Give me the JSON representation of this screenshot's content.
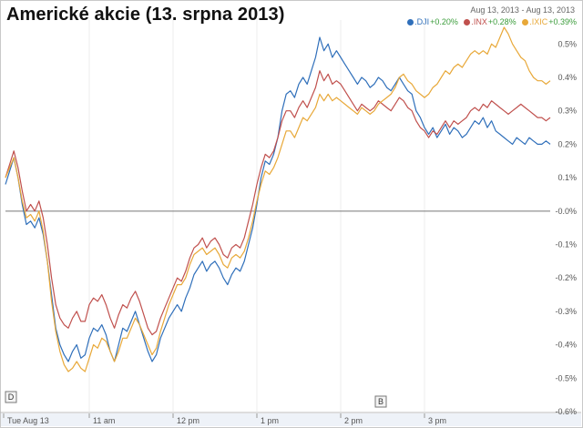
{
  "title": "Americké akcie (13. srpna 2013)",
  "date_range": "Aug 13, 2013  -  Aug 13, 2013",
  "legend": [
    {
      "ticker": ".DJI",
      "change": "+0.20%",
      "color": "#2f6fba"
    },
    {
      "ticker": ".INX",
      "change": "+0.28%",
      "color": "#c0504d"
    },
    {
      "ticker": ".IXIC",
      "change": "+0.39%",
      "color": "#e8a838"
    }
  ],
  "markers": [
    {
      "letter": "D"
    },
    {
      "letter": "B"
    }
  ],
  "chart_data": {
    "type": "line",
    "x": [
      0,
      3,
      6,
      9,
      12,
      15,
      18,
      21,
      24,
      27,
      30,
      33,
      36,
      39,
      42,
      45,
      48,
      51,
      54,
      57,
      60,
      63,
      66,
      69,
      72,
      75,
      78,
      81,
      84,
      87,
      90,
      93,
      96,
      99,
      102,
      105,
      108,
      111,
      114,
      117,
      120,
      123,
      126,
      129,
      132,
      135,
      138,
      141,
      144,
      147,
      150,
      153,
      156,
      159,
      162,
      165,
      168,
      171,
      174,
      177,
      180,
      183,
      186,
      189,
      192,
      195,
      198,
      201,
      204,
      207,
      210,
      213,
      216,
      219,
      222,
      225,
      228,
      231,
      234,
      237,
      240,
      243,
      246,
      249,
      252,
      255,
      258,
      261,
      264,
      267,
      270,
      273,
      276,
      279,
      282,
      285,
      288,
      291,
      294,
      297,
      300,
      303,
      306,
      309,
      312,
      315,
      318,
      321,
      324,
      327,
      330,
      333,
      336,
      339,
      342,
      345,
      348,
      351,
      354,
      357,
      360,
      363,
      366,
      369,
      372,
      375,
      378,
      381,
      384,
      387,
      390
    ],
    "x_ticks": [
      {
        "value": 0,
        "label": "Tue Aug 13"
      },
      {
        "value": 60,
        "label": "11 am"
      },
      {
        "value": 120,
        "label": "12 pm"
      },
      {
        "value": 180,
        "label": "1 pm"
      },
      {
        "value": 240,
        "label": "2 pm"
      },
      {
        "value": 300,
        "label": "3 pm"
      }
    ],
    "y_ticks": [
      "0.5%",
      "0.4%",
      "0.3%",
      "0.2%",
      "0.1%",
      "-0.0%",
      "-0.1%",
      "-0.2%",
      "-0.3%",
      "-0.4%",
      "-0.5%",
      "-0.6%"
    ],
    "ylim": [
      -0.6,
      0.55
    ],
    "xlim": [
      0,
      390
    ],
    "zero_line": true,
    "grid_vertical": true,
    "series": [
      {
        "name": ".DJI",
        "color": "#2f6fba",
        "values": [
          0.08,
          0.12,
          0.16,
          0.1,
          0.02,
          -0.04,
          -0.03,
          -0.05,
          -0.02,
          -0.07,
          -0.15,
          -0.25,
          -0.35,
          -0.4,
          -0.43,
          -0.45,
          -0.42,
          -0.4,
          -0.44,
          -0.43,
          -0.38,
          -0.35,
          -0.36,
          -0.34,
          -0.37,
          -0.42,
          -0.45,
          -0.4,
          -0.35,
          -0.36,
          -0.33,
          -0.3,
          -0.34,
          -0.38,
          -0.42,
          -0.45,
          -0.43,
          -0.38,
          -0.35,
          -0.32,
          -0.3,
          -0.28,
          -0.3,
          -0.26,
          -0.23,
          -0.19,
          -0.17,
          -0.15,
          -0.18,
          -0.16,
          -0.15,
          -0.17,
          -0.2,
          -0.22,
          -0.19,
          -0.17,
          -0.18,
          -0.15,
          -0.1,
          -0.05,
          0.02,
          0.1,
          0.15,
          0.14,
          0.17,
          0.22,
          0.3,
          0.35,
          0.36,
          0.34,
          0.38,
          0.4,
          0.38,
          0.42,
          0.46,
          0.52,
          0.48,
          0.5,
          0.46,
          0.48,
          0.46,
          0.44,
          0.42,
          0.4,
          0.38,
          0.4,
          0.39,
          0.37,
          0.38,
          0.4,
          0.39,
          0.37,
          0.36,
          0.38,
          0.4,
          0.38,
          0.36,
          0.35,
          0.3,
          0.28,
          0.25,
          0.23,
          0.25,
          0.22,
          0.24,
          0.26,
          0.23,
          0.25,
          0.24,
          0.22,
          0.23,
          0.25,
          0.27,
          0.26,
          0.28,
          0.25,
          0.27,
          0.24,
          0.23,
          0.22,
          0.21,
          0.2,
          0.22,
          0.21,
          0.2,
          0.22,
          0.21,
          0.2,
          0.2,
          0.21,
          0.2
        ]
      },
      {
        "name": ".INX",
        "color": "#c0504d",
        "values": [
          0.1,
          0.14,
          0.18,
          0.13,
          0.06,
          0.0,
          0.02,
          0.0,
          0.03,
          -0.02,
          -0.1,
          -0.2,
          -0.28,
          -0.32,
          -0.34,
          -0.35,
          -0.32,
          -0.3,
          -0.33,
          -0.33,
          -0.28,
          -0.26,
          -0.27,
          -0.25,
          -0.28,
          -0.32,
          -0.35,
          -0.31,
          -0.28,
          -0.29,
          -0.26,
          -0.24,
          -0.27,
          -0.31,
          -0.35,
          -0.37,
          -0.36,
          -0.32,
          -0.29,
          -0.26,
          -0.23,
          -0.2,
          -0.21,
          -0.18,
          -0.14,
          -0.11,
          -0.1,
          -0.08,
          -0.11,
          -0.09,
          -0.08,
          -0.1,
          -0.13,
          -0.14,
          -0.11,
          -0.1,
          -0.11,
          -0.08,
          -0.03,
          0.02,
          0.08,
          0.13,
          0.17,
          0.16,
          0.18,
          0.22,
          0.27,
          0.3,
          0.3,
          0.28,
          0.31,
          0.33,
          0.31,
          0.34,
          0.37,
          0.42,
          0.39,
          0.41,
          0.38,
          0.39,
          0.38,
          0.36,
          0.34,
          0.32,
          0.3,
          0.32,
          0.31,
          0.3,
          0.31,
          0.33,
          0.32,
          0.31,
          0.3,
          0.32,
          0.34,
          0.33,
          0.31,
          0.3,
          0.27,
          0.25,
          0.24,
          0.22,
          0.24,
          0.23,
          0.25,
          0.27,
          0.25,
          0.27,
          0.26,
          0.27,
          0.28,
          0.3,
          0.31,
          0.3,
          0.32,
          0.31,
          0.33,
          0.32,
          0.31,
          0.3,
          0.29,
          0.3,
          0.31,
          0.32,
          0.31,
          0.3,
          0.29,
          0.28,
          0.28,
          0.27,
          0.28
        ]
      },
      {
        "name": ".IXIC",
        "color": "#e8a838",
        "values": [
          0.1,
          0.13,
          0.16,
          0.1,
          0.03,
          -0.02,
          -0.01,
          -0.03,
          0.0,
          -0.06,
          -0.15,
          -0.27,
          -0.36,
          -0.42,
          -0.46,
          -0.48,
          -0.47,
          -0.45,
          -0.47,
          -0.48,
          -0.44,
          -0.4,
          -0.41,
          -0.38,
          -0.39,
          -0.42,
          -0.45,
          -0.42,
          -0.38,
          -0.38,
          -0.35,
          -0.32,
          -0.34,
          -0.37,
          -0.4,
          -0.43,
          -0.41,
          -0.36,
          -0.32,
          -0.28,
          -0.25,
          -0.22,
          -0.22,
          -0.2,
          -0.16,
          -0.13,
          -0.12,
          -0.11,
          -0.13,
          -0.12,
          -0.11,
          -0.13,
          -0.16,
          -0.17,
          -0.14,
          -0.13,
          -0.14,
          -0.12,
          -0.08,
          -0.03,
          0.03,
          0.08,
          0.12,
          0.11,
          0.13,
          0.16,
          0.2,
          0.24,
          0.24,
          0.22,
          0.25,
          0.28,
          0.27,
          0.29,
          0.31,
          0.35,
          0.33,
          0.35,
          0.33,
          0.34,
          0.33,
          0.32,
          0.31,
          0.3,
          0.29,
          0.31,
          0.3,
          0.29,
          0.3,
          0.32,
          0.33,
          0.34,
          0.35,
          0.37,
          0.4,
          0.41,
          0.39,
          0.38,
          0.36,
          0.35,
          0.34,
          0.35,
          0.37,
          0.38,
          0.4,
          0.42,
          0.41,
          0.43,
          0.44,
          0.43,
          0.45,
          0.47,
          0.48,
          0.47,
          0.48,
          0.47,
          0.5,
          0.49,
          0.52,
          0.55,
          0.53,
          0.5,
          0.48,
          0.46,
          0.45,
          0.42,
          0.4,
          0.39,
          0.39,
          0.38,
          0.39
        ]
      }
    ]
  }
}
